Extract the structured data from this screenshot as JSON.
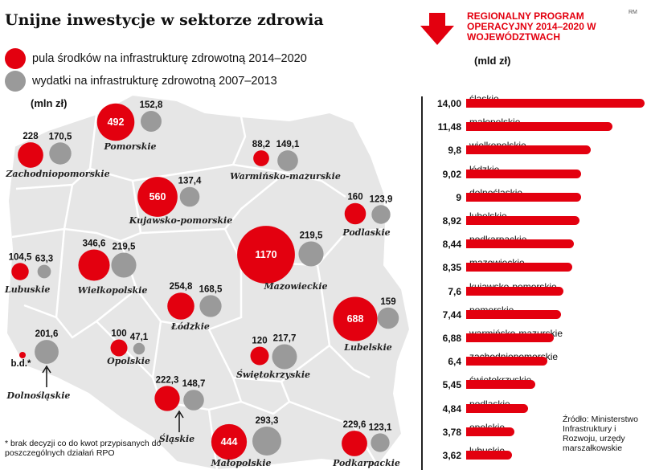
{
  "title": "Unijne inwestycje w sektorze zdrowia",
  "legend": [
    {
      "label": "pula środków na infrastrukturę zdrowotną 2014–2020",
      "color": "#e3000f"
    },
    {
      "label": "wydatki na infrastrukturę zdrowotną 2007–2013",
      "color": "#9a9a9a"
    }
  ],
  "map_unit": "(mln zł)",
  "map_regions": [
    {
      "name": "Pomorskie",
      "v2014": 492,
      "v2014_label": "492",
      "v2007": 152.8,
      "v2007_label": "152,8"
    },
    {
      "name": "Zachodniopomorskie",
      "v2014": 228,
      "v2014_label": "228",
      "v2007": 170.5,
      "v2007_label": "170,5"
    },
    {
      "name": "Warmińsko-mazurskie",
      "v2014": 88.2,
      "v2014_label": "88,2",
      "v2007": 149.1,
      "v2007_label": "149,1"
    },
    {
      "name": "Kujawsko-pomorskie",
      "v2014": 560,
      "v2014_label": "560",
      "v2007": 137.4,
      "v2007_label": "137,4"
    },
    {
      "name": "Podlaskie",
      "v2014": 160,
      "v2014_label": "160",
      "v2007": 123.9,
      "v2007_label": "123,9"
    },
    {
      "name": "Lubuskie",
      "v2014": 104.5,
      "v2014_label": "104,5",
      "v2007": 63.3,
      "v2007_label": "63,3"
    },
    {
      "name": "Wielkopolskie",
      "v2014": 346.6,
      "v2014_label": "346,6",
      "v2007": 219.5,
      "v2007_label": "219,5"
    },
    {
      "name": "Mazowieckie",
      "v2014": 1170,
      "v2014_label": "1170",
      "v2007": 219.5,
      "v2007_label": "219,5"
    },
    {
      "name": "Łódzkie",
      "v2014": 254.8,
      "v2014_label": "254,8",
      "v2007": 168.5,
      "v2007_label": "168,5"
    },
    {
      "name": "Lubelskie",
      "v2014": 688,
      "v2014_label": "688",
      "v2007": 159,
      "v2007_label": "159"
    },
    {
      "name": "Dolnośląskie",
      "v2014": null,
      "v2014_label": "b.d.*",
      "v2007": 201.6,
      "v2007_label": "201,6"
    },
    {
      "name": "Opolskie",
      "v2014": 100,
      "v2014_label": "100",
      "v2007": 47.1,
      "v2007_label": "47,1"
    },
    {
      "name": "Świętokrzyskie",
      "v2014": 120,
      "v2014_label": "120",
      "v2007": 217.7,
      "v2007_label": "217,7"
    },
    {
      "name": "Śląskie",
      "v2014": 222.3,
      "v2014_label": "222,3",
      "v2007": 148.7,
      "v2007_label": "148,7"
    },
    {
      "name": "Małopolskie",
      "v2014": 444,
      "v2014_label": "444",
      "v2007": 293.3,
      "v2007_label": "293,3"
    },
    {
      "name": "Podkarpackie",
      "v2014": 229.6,
      "v2014_label": "229,6",
      "v2007": 123.1,
      "v2007_label": "123,1"
    }
  ],
  "footnote": "* brak decyzji co do kwot przypisanych do poszczególnych działań RPO",
  "rpo_title": "REGIONALNY PROGRAM OPERACYJNY 2014–2020 W WOJEWÓDZTWACH",
  "rpo_unit": "(mld zł)",
  "rm_mark": "RM",
  "source_note": "Źródło: Ministerstwo Infrastruktury i Rozwoju, urzędy marszałkowskie",
  "colors": {
    "red": "#e3000f",
    "gray": "#9a9a9a",
    "map": "#e6e6e6"
  },
  "chart_data": [
    {
      "type": "bubble-map",
      "title": "Unijne inwestycje w sektorze zdrowia",
      "unit": "mln zł",
      "series": [
        {
          "name": "pula środków na infrastrukturę zdrowotną 2014–2020",
          "values": {
            "Pomorskie": 492,
            "Zachodniopomorskie": 228,
            "Warmińsko-mazurskie": 88.2,
            "Kujawsko-pomorskie": 560,
            "Podlaskie": 160,
            "Lubuskie": 104.5,
            "Wielkopolskie": 346.6,
            "Mazowieckie": 1170,
            "Łódzkie": 254.8,
            "Lubelskie": 688,
            "Dolnośląskie": null,
            "Opolskie": 100,
            "Świętokrzyskie": 120,
            "Śląskie": 222.3,
            "Małopolskie": 444,
            "Podkarpackie": 229.6
          }
        },
        {
          "name": "wydatki na infrastrukturę zdrowotną 2007–2013",
          "values": {
            "Pomorskie": 152.8,
            "Zachodniopomorskie": 170.5,
            "Warmińsko-mazurskie": 149.1,
            "Kujawsko-pomorskie": 137.4,
            "Podlaskie": 123.9,
            "Lubuskie": 63.3,
            "Wielkopolskie": 219.5,
            "Mazowieckie": 219.5,
            "Łódzkie": 168.5,
            "Lubelskie": 159,
            "Dolnośląskie": 201.6,
            "Opolskie": 47.1,
            "Świętokrzyskie": 217.7,
            "Śląskie": 148.7,
            "Małopolskie": 293.3,
            "Podkarpackie": 123.1
          }
        }
      ]
    },
    {
      "type": "bar",
      "orientation": "horizontal",
      "title": "REGIONALNY PROGRAM OPERACYJNY 2014–2020 W WOJEWÓDZTWACH",
      "unit": "mld zł",
      "categories": [
        "śląskie",
        "małopolskie",
        "wielkopolskie",
        "łódzkie",
        "dolnośląskie",
        "lubelskie",
        "podkarpackie",
        "mazowieckie",
        "kujawsko-pomorskie",
        "pomorskie",
        "warmińsko-mazurskie",
        "zachodniopomorskie",
        "świętokrzyskie",
        "podlaskie",
        "opolskie",
        "lubuskie"
      ],
      "values": [
        14.0,
        11.48,
        9.8,
        9.02,
        9,
        8.92,
        8.44,
        8.35,
        7.6,
        7.44,
        6.88,
        6.4,
        5.45,
        4.84,
        3.78,
        3.62
      ],
      "value_labels": [
        "14,00",
        "11,48",
        "9,8",
        "9,02",
        "9",
        "8,92",
        "8,44",
        "8,35",
        "7,6",
        "7,44",
        "6,88",
        "6,4",
        "5,45",
        "4,84",
        "3,78",
        "3,62"
      ],
      "xlim": [
        0,
        14
      ]
    }
  ]
}
